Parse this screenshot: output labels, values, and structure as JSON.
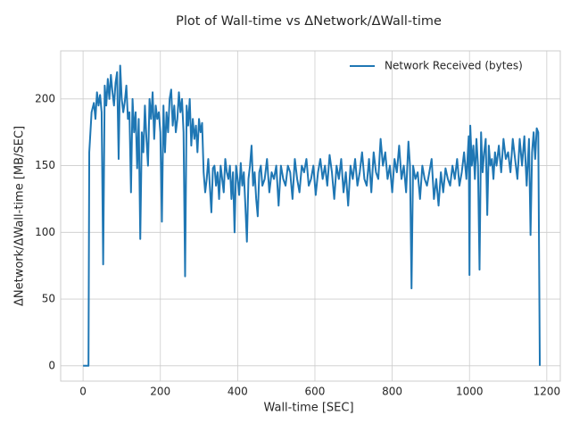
{
  "chart_data": {
    "type": "line",
    "title": "Plot of Wall-time vs ΔNetwork/ΔWall-time",
    "xlabel": "Wall-time [SEC]",
    "ylabel": "ΔNetwork/ΔWall-time [MB/SEC]",
    "xlim": [
      -58,
      1235
    ],
    "ylim": [
      -11.5,
      236
    ],
    "xticks": [
      0,
      200,
      400,
      600,
      800,
      1000,
      1200
    ],
    "yticks": [
      0,
      50,
      100,
      150,
      200
    ],
    "grid": true,
    "legend": "upper right",
    "x": [
      0,
      14,
      16,
      22,
      28,
      32,
      36,
      40,
      44,
      48,
      52,
      56,
      60,
      64,
      68,
      72,
      76,
      80,
      84,
      88,
      92,
      96,
      100,
      104,
      108,
      112,
      116,
      120,
      124,
      128,
      132,
      136,
      140,
      144,
      148,
      152,
      156,
      160,
      164,
      168,
      172,
      176,
      180,
      184,
      188,
      192,
      196,
      200,
      204,
      208,
      212,
      216,
      220,
      224,
      228,
      232,
      236,
      240,
      244,
      248,
      252,
      256,
      260,
      264,
      268,
      272,
      276,
      280,
      284,
      288,
      292,
      296,
      300,
      304,
      308,
      312,
      316,
      320,
      324,
      328,
      332,
      336,
      340,
      344,
      348,
      352,
      356,
      360,
      364,
      368,
      372,
      376,
      380,
      384,
      388,
      392,
      396,
      400,
      404,
      408,
      412,
      416,
      420,
      424,
      428,
      432,
      436,
      440,
      444,
      448,
      452,
      456,
      460,
      464,
      470,
      476,
      482,
      488,
      494,
      500,
      506,
      512,
      518,
      524,
      530,
      536,
      542,
      548,
      554,
      560,
      566,
      572,
      578,
      584,
      590,
      596,
      602,
      608,
      614,
      620,
      626,
      632,
      638,
      644,
      650,
      656,
      662,
      668,
      674,
      680,
      686,
      692,
      698,
      704,
      710,
      716,
      722,
      728,
      734,
      740,
      746,
      752,
      758,
      764,
      770,
      776,
      782,
      788,
      794,
      800,
      806,
      812,
      818,
      824,
      830,
      836,
      842,
      846,
      850,
      854,
      860,
      866,
      872,
      878,
      884,
      890,
      896,
      902,
      908,
      914,
      920,
      926,
      932,
      938,
      944,
      950,
      956,
      962,
      968,
      974,
      980,
      986,
      992,
      998,
      1000,
      1002,
      1006,
      1010,
      1014,
      1018,
      1022,
      1026,
      1030,
      1034,
      1038,
      1042,
      1046,
      1050,
      1054,
      1058,
      1062,
      1066,
      1070,
      1076,
      1082,
      1088,
      1094,
      1100,
      1106,
      1112,
      1118,
      1124,
      1130,
      1136,
      1142,
      1148,
      1154,
      1158,
      1162,
      1166,
      1170,
      1174,
      1178,
      1182
    ],
    "series": [
      {
        "name": "Network Received (bytes)",
        "color": "#1f77b4",
        "values": [
          0,
          0,
          160,
          190,
          197,
          185,
          205,
          195,
          203,
          190,
          76,
          210,
          195,
          215,
          200,
          218,
          205,
          195,
          212,
          220,
          155,
          225,
          200,
          190,
          198,
          210,
          185,
          190,
          130,
          200,
          175,
          190,
          148,
          185,
          95,
          175,
          160,
          195,
          170,
          150,
          200,
          185,
          205,
          170,
          195,
          185,
          190,
          175,
          108,
          195,
          160,
          190,
          175,
          200,
          207,
          180,
          195,
          175,
          185,
          205,
          190,
          200,
          175,
          67,
          195,
          180,
          200,
          165,
          185,
          170,
          180,
          160,
          185,
          175,
          182,
          145,
          130,
          140,
          155,
          135,
          115,
          148,
          150,
          135,
          145,
          125,
          150,
          140,
          130,
          155,
          145,
          140,
          150,
          125,
          145,
          100,
          150,
          140,
          128,
          152,
          135,
          145,
          120,
          93,
          140,
          150,
          165,
          135,
          145,
          125,
          112,
          145,
          150,
          135,
          140,
          155,
          130,
          145,
          140,
          150,
          120,
          150,
          140,
          135,
          150,
          145,
          125,
          155,
          140,
          130,
          150,
          145,
          155,
          135,
          140,
          150,
          128,
          145,
          155,
          140,
          150,
          135,
          158,
          145,
          125,
          150,
          140,
          155,
          130,
          145,
          120,
          150,
          140,
          155,
          135,
          145,
          160,
          140,
          135,
          155,
          130,
          160,
          145,
          140,
          170,
          150,
          160,
          140,
          150,
          130,
          155,
          145,
          165,
          140,
          150,
          130,
          168,
          150,
          58,
          150,
          140,
          145,
          125,
          150,
          140,
          135,
          145,
          155,
          125,
          140,
          120,
          145,
          130,
          148,
          140,
          135,
          150,
          140,
          155,
          135,
          145,
          160,
          140,
          172,
          68,
          180,
          150,
          165,
          140,
          170,
          150,
          72,
          175,
          145,
          160,
          170,
          113,
          165,
          150,
          155,
          140,
          160,
          150,
          165,
          145,
          170,
          155,
          160,
          145,
          170,
          155,
          140,
          170,
          150,
          172,
          135,
          170,
          98,
          160,
          175,
          155,
          178,
          175,
          0
        ]
      }
    ]
  }
}
